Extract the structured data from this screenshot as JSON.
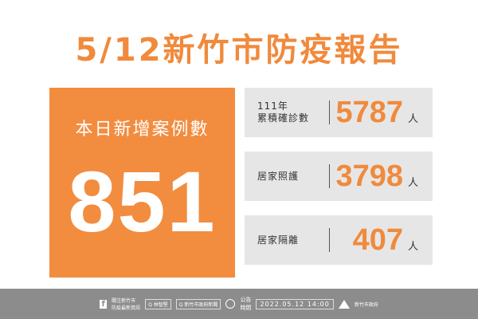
{
  "title": "5/12新竹市防疫報告",
  "daily": {
    "label": "本日新增案例數",
    "value": "851"
  },
  "stats": [
    {
      "label_line1": "111年",
      "label_line2": "累積確診數",
      "value": "5787",
      "unit": "人"
    },
    {
      "label_line1": "",
      "label_line2": "居家照護",
      "value": "3798",
      "unit": "人"
    },
    {
      "label_line1": "",
      "label_line2": "居家隔離",
      "value": "407",
      "unit": "人"
    }
  ],
  "footer": {
    "follow_line1": "關注新竹市",
    "follow_line2": "防疫最新資訊",
    "search1": "Q 林智堅",
    "search2": "Q 新竹市政府新聞",
    "announce_line1": "公告",
    "announce_line2": "時間",
    "datetime": "2022.05.12 14:00",
    "org": "新竹市政府"
  },
  "colors": {
    "accent": "#f28c3f",
    "panel": "#e6e6e6",
    "footer": "#8c8c8c"
  }
}
